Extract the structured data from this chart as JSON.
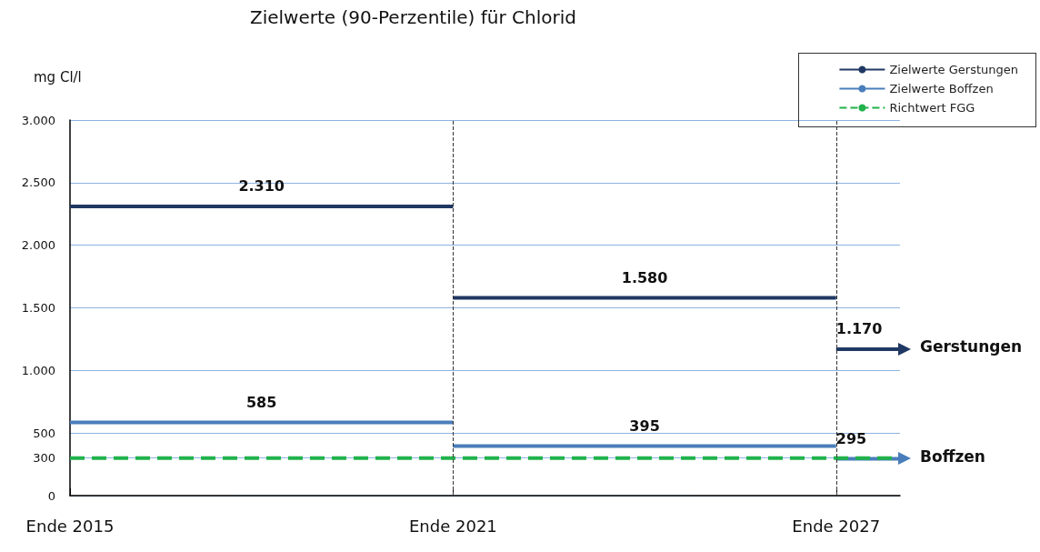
{
  "chart_data": {
    "type": "line",
    "title": "Zielwerte (90-Perzentile) für Chlorid",
    "ylabel": "mg Cl/l",
    "categories": [
      "Ende 2015",
      null,
      null,
      null,
      null,
      null,
      "Ende 2021",
      null,
      null,
      null,
      null,
      null,
      "Ende 2027",
      null
    ],
    "ylim": [
      0,
      3000
    ],
    "yticks": [
      0,
      300,
      500,
      {
        "value": 1000,
        "label": "1.000"
      },
      {
        "value": 1500,
        "label": "1.500"
      },
      {
        "value": 2000,
        "label": "2.000"
      },
      {
        "value": 2500,
        "label": "2.500"
      },
      {
        "value": 3000,
        "label": "3.000"
      }
    ],
    "series": [
      {
        "name": "Zielwerte Gerstungen",
        "color": "#1f3864",
        "values": [
          2310,
          2310,
          2310,
          2310,
          2310,
          2310,
          2310,
          null,
          null,
          null,
          null,
          null,
          null,
          null
        ],
        "value_labels": [
          null,
          null,
          null,
          "2.310",
          null,
          null,
          null,
          null,
          null,
          null,
          null,
          null,
          null,
          null
        ]
      },
      {
        "color": "#1f3864",
        "values": [
          null,
          null,
          null,
          null,
          null,
          null,
          1580,
          1580,
          1580,
          1580,
          1580,
          1580,
          1580,
          null
        ],
        "value_labels": [
          null,
          null,
          null,
          null,
          null,
          null,
          null,
          null,
          null,
          "1.580",
          null,
          null,
          null,
          null
        ]
      },
      {
        "color": "#1f3864",
        "values": [
          null,
          null,
          null,
          null,
          null,
          null,
          null,
          null,
          null,
          null,
          null,
          null,
          1170,
          1170
        ],
        "value_labels": [
          null,
          null,
          null,
          null,
          null,
          null,
          null,
          null,
          null,
          null,
          null,
          null,
          "1.170",
          null
        ]
      },
      {
        "name": "Zielwerte Boffzen",
        "color": "#4a7ebb",
        "values": [
          585,
          585,
          585,
          585,
          585,
          585,
          585,
          null,
          null,
          null,
          null,
          null,
          null,
          null
        ],
        "value_labels": [
          null,
          null,
          null,
          "585",
          null,
          null,
          null,
          null,
          null,
          null,
          null,
          null,
          null,
          null
        ]
      },
      {
        "color": "#4a7ebb",
        "values": [
          null,
          null,
          null,
          null,
          null,
          null,
          395,
          395,
          395,
          395,
          395,
          395,
          395,
          null
        ],
        "value_labels": [
          null,
          null,
          null,
          null,
          null,
          null,
          null,
          null,
          null,
          "395",
          null,
          null,
          null,
          null
        ]
      },
      {
        "color": "#4a7ebb",
        "values": [
          null,
          null,
          null,
          null,
          null,
          null,
          null,
          null,
          null,
          null,
          null,
          null,
          295,
          295
        ],
        "value_labels": [
          null,
          null,
          null,
          null,
          null,
          null,
          null,
          null,
          null,
          null,
          null,
          null,
          "295",
          null
        ]
      },
      {
        "name": "Richtwert FGG",
        "color": "#21b24b",
        "line_style": "dashed",
        "values": [
          300,
          300,
          300,
          300,
          300,
          300,
          300,
          300,
          300,
          300,
          300,
          300,
          300,
          300
        ]
      }
    ],
    "ref_lines": [
      {
        "axis": "x",
        "value": "Ende 2021",
        "color": "#333333",
        "line_style": "dashed"
      },
      {
        "axis": "x",
        "value": "Ende 2027",
        "color": "#333333",
        "line_style": "dashed"
      }
    ],
    "annotations": [
      "Gerstungen",
      "Boffzen"
    ],
    "grid": "y",
    "legend": "top right",
    "line_style": "solid"
  }
}
